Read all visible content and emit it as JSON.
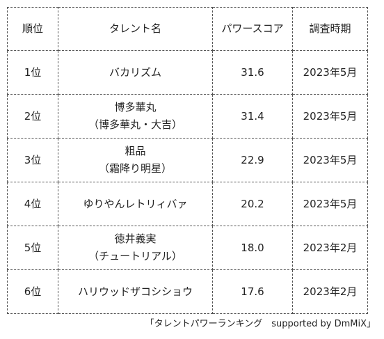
{
  "table": {
    "headers": [
      "順位",
      "タレント名",
      "パワースコア",
      "調査時期"
    ],
    "rows": [
      {
        "rank": "1位",
        "name_main": "バカリズム",
        "name_sub": "",
        "score": "31.6",
        "date": "2023年5月"
      },
      {
        "rank": "2位",
        "name_main": "博多華丸",
        "name_sub": "（博多華丸・大吉）",
        "score": "31.4",
        "date": "2023年5月"
      },
      {
        "rank": "3位",
        "name_main": "粗品",
        "name_sub": "（霜降り明星）",
        "score": "22.9",
        "date": "2023年5月"
      },
      {
        "rank": "4位",
        "name_main": "ゆりやんレトリィバァ",
        "name_sub": "",
        "score": "20.2",
        "date": "2023年5月"
      },
      {
        "rank": "5位",
        "name_main": "徳井義実",
        "name_sub": "（チュートリアル）",
        "score": "18.0",
        "date": "2023年2月"
      },
      {
        "rank": "6位",
        "name_main": "ハリウッドザコシショウ",
        "name_sub": "",
        "score": "17.6",
        "date": "2023年2月"
      }
    ]
  },
  "source_caption": "「タレントパワーランキング　supported by DmMiX」"
}
